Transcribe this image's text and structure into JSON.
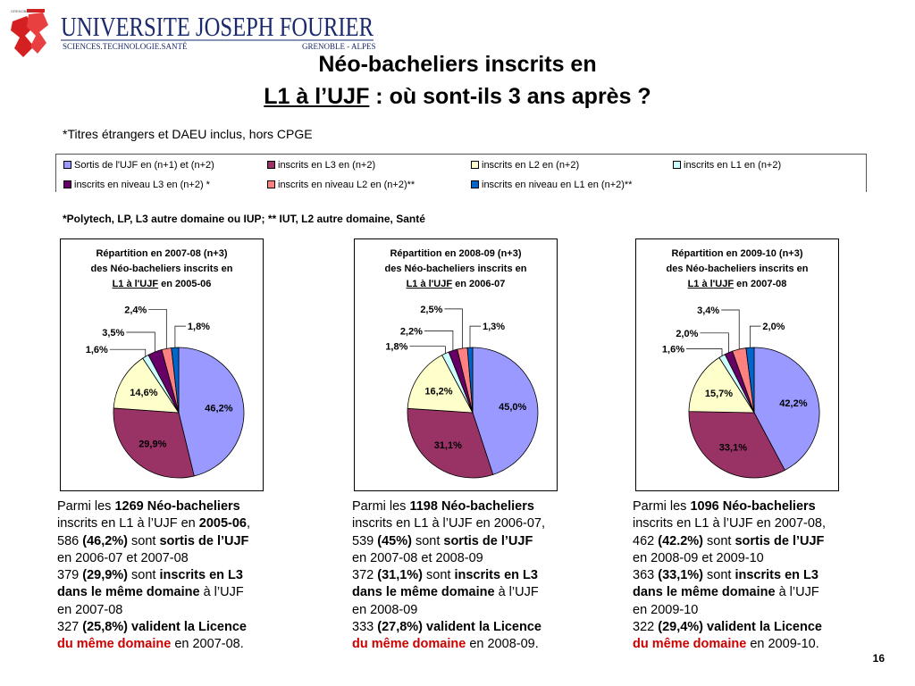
{
  "header": {
    "logo_main": "UNIVERSITE JOSEPH FOURIER",
    "logo_sub_left": "SCIENCES.TECHNOLOGIE.SANTÉ",
    "logo_sub_right": "GRENOBLE - ALPES",
    "logo_small": "GRENOBLE 1",
    "title_line1": "Néo-bacheliers inscrits en",
    "title_line2_underlined": "L1 à l’UJF",
    "title_line2_rest": " : où sont-ils 3 ans après ?"
  },
  "note_top": "*Titres étrangers et DAEU inclus, hors CPGE",
  "note_bottom": "*Polytech, LP, L3 autre domaine ou IUP; **  IUT, L2 autre domaine, Santé",
  "legend": [
    {
      "label": "Sortis de l'UJF en (n+1) et (n+2)",
      "color": "#9999ff"
    },
    {
      "label": "inscrits en L3 en (n+2)",
      "color": "#993366"
    },
    {
      "label": "inscrits en L2 en  (n+2)",
      "color": "#ffffcc"
    },
    {
      "label": "inscrits en L1 en  (n+2)",
      "color": "#ccffff"
    },
    {
      "label": "inscrits en niveau L3 en (n+2) *",
      "color": "#660066"
    },
    {
      "label": "inscrits en niveau L2 en (n+2)**",
      "color": "#ff8080"
    },
    {
      "label": "inscrits en niveau en L1 en (n+2)**",
      "color": "#0066cc"
    }
  ],
  "chart_data": [
    {
      "type": "pie",
      "title_line1": "Répartition en 2007-08 (n+3)",
      "title_line2": "des Néo-bacheliers inscrits en",
      "title_line3_underlined": "L1 à l'UJF",
      "title_line3_rest": " en 2005-06",
      "values": [
        46.2,
        29.9,
        14.6,
        1.6,
        3.5,
        2.4,
        1.8
      ],
      "labels": [
        "46,2%",
        "29,9%",
        "14,6%",
        "1,6%",
        "3,5%",
        "2,4%",
        "1,8%"
      ]
    },
    {
      "type": "pie",
      "title_line1": "Répartition en 2008-09 (n+3)",
      "title_line2": "des Néo-bacheliers inscrits en",
      "title_line3_underlined": "L1 à l'UJF",
      "title_line3_rest": " en 2006-07",
      "values": [
        45.0,
        31.1,
        16.2,
        1.8,
        2.2,
        2.5,
        1.3
      ],
      "labels": [
        "45,0%",
        "31,1%",
        "16,2%",
        "1,8%",
        "2,2%",
        "2,5%",
        "1,3%"
      ]
    },
    {
      "type": "pie",
      "title_line1": "Répartition en 2009-10 (n+3)",
      "title_line2": "des Néo-bacheliers inscrits en",
      "title_line3_underlined": "L1 à l'UJF",
      "title_line3_rest": " en 2007-08",
      "values": [
        42.2,
        33.1,
        15.7,
        1.6,
        2.0,
        3.4,
        2.0
      ],
      "labels": [
        "42,2%",
        "33,1%",
        "15,7%",
        "1,6%",
        "2,0%",
        "3,4%",
        "2,0%"
      ]
    }
  ],
  "paragraphs": [
    {
      "a1": "Parmi les ",
      "a2": "1269 Néo-bacheliers",
      "b1": "inscrits en L1 à l’UJF en ",
      "b2": "2005-06",
      "b3": ",",
      "c1": "586 ",
      "c2": "(46,2%)",
      "c3": " sont ",
      "c4": "sortis de l’UJF",
      "d1": "en 2006-07 et 2007-08",
      "e1": "379 ",
      "e2": "(29,9%)",
      "e3": " sont ",
      "e4": "inscrits en L3",
      "f1": "dans le même domaine",
      "f2": " à l’UJF",
      "g1": "en 2007-08",
      "h1": "327 ",
      "h2": "(25,8%) valident la Licence",
      "i1": "du même domaine",
      "i2": " en 2007-08."
    },
    {
      "a1": "Parmi les ",
      "a2": "1198 Néo-bacheliers",
      "b1": "inscrits en L1 à l’UJF en 2006-07,",
      "b2": "",
      "b3": "",
      "c1": "539 ",
      "c2": "(45%)",
      "c3": " sont ",
      "c4": "sortis de l’UJF",
      "d1": "en 2007-08 et 2008-09",
      "e1": "372 ",
      "e2": "(31,1%)",
      "e3": " sont ",
      "e4": "inscrits en L3",
      "f1": "dans le même domaine",
      "f2": " à l’UJF",
      "g1": "en 2008-09",
      "h1": "333 ",
      "h2": "(27,8%) valident la Licence",
      "i1": "du même domaine",
      "i2": " en 2008-09."
    },
    {
      "a1": "Parmi les ",
      "a2": "1096 Néo-bacheliers",
      "b1": "inscrits en L1 à l’UJF en 2007-08,",
      "b2": "",
      "b3": "",
      "c1": "462 ",
      "c2": "(42.2%)",
      "c3": " sont ",
      "c4": "sortis de l’UJF",
      "d1": "en 2008-09 et 2009-10",
      "e1": "363 ",
      "e2": "(33,1%)",
      "e3": " sont ",
      "e4": "inscrits en L3",
      "f1": "dans le même domaine",
      "f2": " à l’UJF",
      "g1": "en 2009-10",
      "h1": "322 ",
      "h2": "(29,4%) valident la Licence",
      "i1": "du même domaine",
      "i2": " en 2009-10."
    }
  ],
  "page_number": "16"
}
